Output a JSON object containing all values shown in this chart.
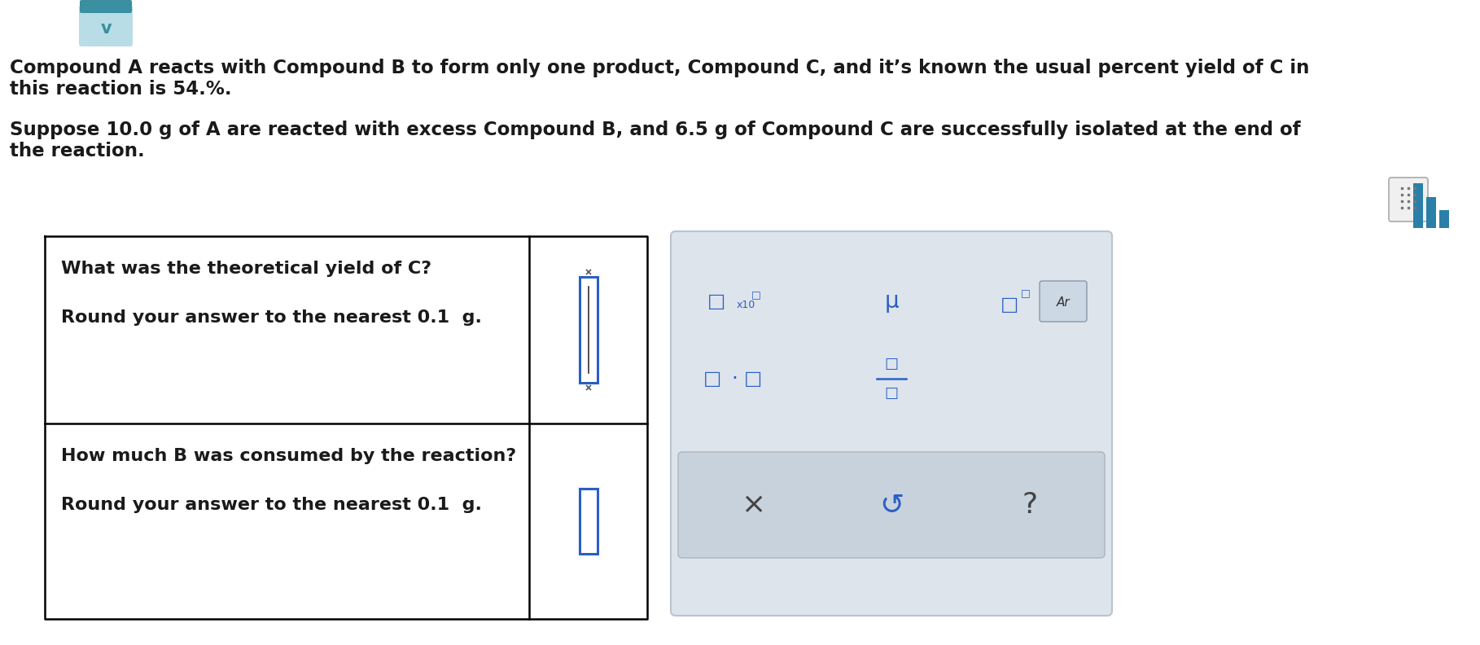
{
  "background_color": "#ffffff",
  "icon_teal_dark": "#3a8fa0",
  "icon_teal_light": "#b8dde6",
  "paragraph1_line1": "Compound A reacts with Compound B to form only one product, Compound C, and it’s known the usual percent yield of C in",
  "paragraph1_line2": "this reaction is 54.%.",
  "paragraph2_line1": "Suppose 10.0 g of A are reacted with excess Compound B, and 6.5 g of Compound C are successfully isolated at the end of",
  "paragraph2_line2": "the reaction.",
  "q1_line1": "What was the theoretical yield of C?",
  "q1_line2": "Round your answer to the nearest 0.1  g.",
  "q2_line1": "How much B was consumed by the reaction?",
  "q2_line2": "Round your answer to the nearest 0.1  g.",
  "text_color": "#1a1a1a",
  "font_size_body": 16.5,
  "font_size_q": 16.0,
  "input_box_color": "#2a5fc4",
  "panel_bg": "#dde4ec",
  "panel_border": "#b8c4d0",
  "panel_sym_color": "#2a5fc4",
  "btn_bg": "#c8d2dc",
  "btn_text": "#555555",
  "calc_icon_bg": "#f0f0f0",
  "calc_icon_border": "#aaaaaa",
  "bar_icon_color": "#2a7fa8"
}
